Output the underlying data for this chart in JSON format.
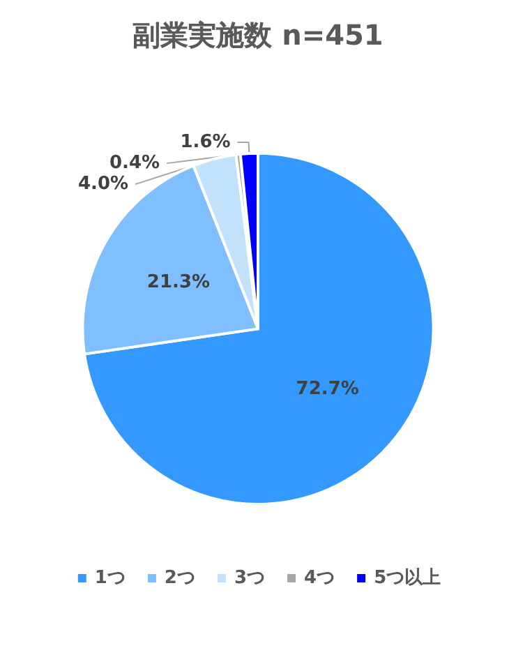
{
  "chart_data": {
    "type": "pie",
    "title": "副業実施数 n=451",
    "categories": [
      "1つ",
      "2つ",
      "3つ",
      "4つ",
      "5つ以上"
    ],
    "values": [
      72.7,
      21.3,
      4.0,
      0.4,
      1.6
    ],
    "value_labels": [
      "72.7%",
      "21.3%",
      "4.0%",
      "0.4%",
      "1.6%"
    ],
    "colors": [
      "#3399ff",
      "#80bfff",
      "#c2e2fb",
      "#a6a6a6",
      "#0000ff"
    ],
    "legend": "bottom"
  }
}
